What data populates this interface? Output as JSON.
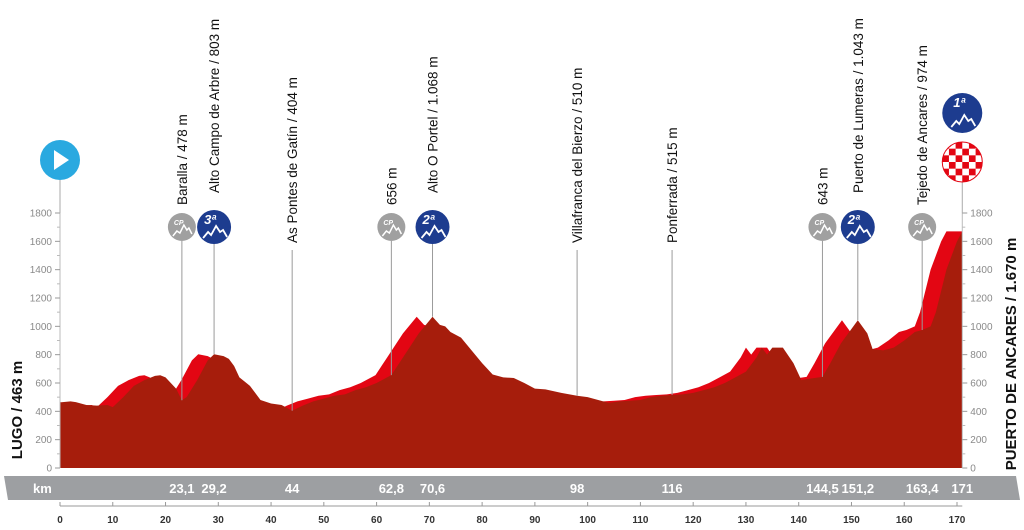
{
  "chart_data": {
    "type": "area",
    "title": "",
    "xlabel": "km",
    "ylabel": "",
    "xlim": [
      0,
      171
    ],
    "ylim": [
      0,
      1800
    ],
    "x_ticks": [
      0,
      10,
      20,
      30,
      40,
      50,
      60,
      70,
      80,
      90,
      100,
      110,
      120,
      130,
      140,
      150,
      160,
      170
    ],
    "y_ticks": [
      0,
      200,
      400,
      600,
      800,
      1000,
      1200,
      1400,
      1600,
      1800
    ],
    "colors": {
      "profile": "#a61d0c",
      "climb": "#e30613",
      "band": "#9d9fa2",
      "category": "#1d3c8f",
      "cp": "#a0a0a0",
      "start": "#2aa9e0"
    },
    "start_label": "LUGO / 463 m",
    "finish_label": "PUERTO DE ANCARES / 1.670 m",
    "profile": [
      [
        0,
        463
      ],
      [
        2,
        470
      ],
      [
        3,
        465
      ],
      [
        5,
        445
      ],
      [
        7,
        440
      ],
      [
        9,
        445
      ],
      [
        10,
        430
      ],
      [
        12,
        500
      ],
      [
        14,
        580
      ],
      [
        16,
        620
      ],
      [
        18,
        650
      ],
      [
        19,
        655
      ],
      [
        20,
        640
      ],
      [
        21,
        600
      ],
      [
        22,
        560
      ],
      [
        23.1,
        478
      ],
      [
        24,
        500
      ],
      [
        26,
        620
      ],
      [
        28,
        760
      ],
      [
        29.2,
        803
      ],
      [
        31,
        790
      ],
      [
        32,
        770
      ],
      [
        33,
        720
      ],
      [
        34,
        640
      ],
      [
        36,
        580
      ],
      [
        38,
        480
      ],
      [
        40,
        455
      ],
      [
        42,
        445
      ],
      [
        44,
        404
      ],
      [
        46,
        440
      ],
      [
        48,
        470
      ],
      [
        50,
        490
      ],
      [
        52,
        510
      ],
      [
        54,
        520
      ],
      [
        56,
        550
      ],
      [
        58,
        570
      ],
      [
        60,
        600
      ],
      [
        62.8,
        656
      ],
      [
        65,
        780
      ],
      [
        68,
        950
      ],
      [
        70.6,
        1068
      ],
      [
        72,
        1010
      ],
      [
        73,
        1000
      ],
      [
        74,
        960
      ],
      [
        76,
        920
      ],
      [
        78,
        830
      ],
      [
        80,
        740
      ],
      [
        82,
        660
      ],
      [
        84,
        640
      ],
      [
        86,
        635
      ],
      [
        88,
        600
      ],
      [
        90,
        560
      ],
      [
        92,
        555
      ],
      [
        95,
        530
      ],
      [
        98,
        510
      ],
      [
        100,
        500
      ],
      [
        102,
        480
      ],
      [
        104,
        460
      ],
      [
        106,
        470
      ],
      [
        108,
        475
      ],
      [
        110,
        480
      ],
      [
        112,
        500
      ],
      [
        114,
        510
      ],
      [
        116,
        515
      ],
      [
        118,
        520
      ],
      [
        120,
        530
      ],
      [
        122,
        550
      ],
      [
        124,
        570
      ],
      [
        126,
        600
      ],
      [
        128,
        640
      ],
      [
        130,
        680
      ],
      [
        132,
        780
      ],
      [
        133,
        850
      ],
      [
        134,
        800
      ],
      [
        135,
        850
      ],
      [
        137,
        850
      ],
      [
        139,
        740
      ],
      [
        140.5,
        620
      ],
      [
        142,
        630
      ],
      [
        144.5,
        643
      ],
      [
        146,
        740
      ],
      [
        148,
        880
      ],
      [
        151.2,
        1043
      ],
      [
        153,
        950
      ],
      [
        154,
        840
      ],
      [
        156,
        830
      ],
      [
        158,
        850
      ],
      [
        160,
        900
      ],
      [
        162,
        960
      ],
      [
        163.4,
        974
      ],
      [
        165,
        1000
      ],
      [
        166,
        1100
      ],
      [
        168,
        1400
      ],
      [
        170,
        1600
      ],
      [
        171,
        1670
      ]
    ],
    "markers": [
      {
        "km": 23.1,
        "km_label": "23,1",
        "label": "Baralla / 478 m",
        "icon": "cp"
      },
      {
        "km": 29.2,
        "km_label": "29,2",
        "label": "Alto Campo de Arbre / 803 m",
        "icon": "cat",
        "category": "3ª"
      },
      {
        "km": 44,
        "km_label": "44",
        "label": "As Pontes de Gatín / 404 m",
        "icon": ""
      },
      {
        "km": 62.8,
        "km_label": "62,8",
        "label": "656 m",
        "icon": "cp"
      },
      {
        "km": 70.6,
        "km_label": "70,6",
        "label": "Alto O Portel / 1.068 m",
        "icon": "cat",
        "category": "2ª"
      },
      {
        "km": 98,
        "km_label": "98",
        "label": "Villafranca del Bierzo / 510 m",
        "icon": ""
      },
      {
        "km": 116,
        "km_label": "116",
        "label": "Ponferrada / 515 m",
        "icon": ""
      },
      {
        "km": 144.5,
        "km_label": "144,5",
        "label": "643 m",
        "icon": "cp"
      },
      {
        "km": 151.2,
        "km_label": "151,2",
        "label": "Puerto de Lumeras / 1.043 m",
        "icon": "cat",
        "category": "2ª"
      },
      {
        "km": 163.4,
        "km_label": "163,4",
        "label": "Tejedo de Ancares / 974 m",
        "icon": "cp"
      },
      {
        "km": 171,
        "km_label": "171",
        "label": "",
        "icon": "finish",
        "category": "1ª"
      }
    ],
    "cp_text": "CP",
    "band_label": "km",
    "grid": false
  }
}
